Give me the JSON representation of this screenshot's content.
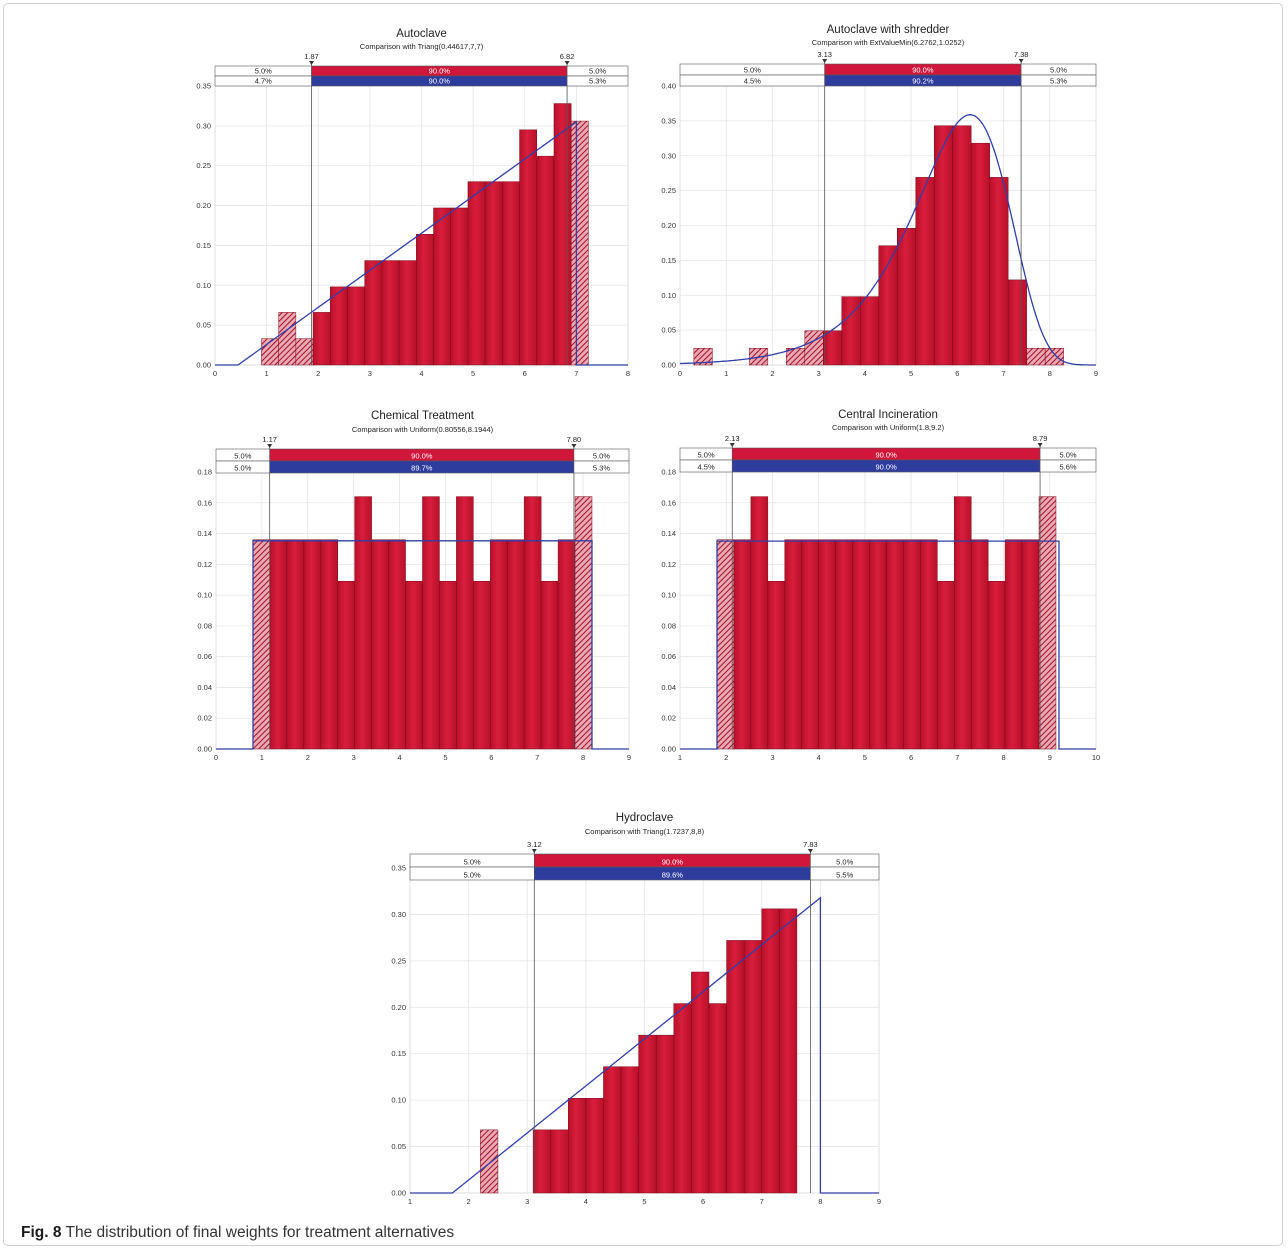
{
  "caption": {
    "label": "Fig. 8",
    "text": "The distribution of final weights for treatment alternatives"
  },
  "colors": {
    "bar": "#b8102a",
    "bar_light": "#d81e3c",
    "fit_line": "#2f3ea8",
    "upper_band": "#d0163a",
    "lower_band": "#2e3c9e"
  },
  "chart_data": [
    {
      "type": "bar",
      "title": "Autoclave",
      "subtitle": "Comparison with Triang(0.44617,7,7)",
      "xlim": [
        0,
        8
      ],
      "ylim": [
        0,
        0.35
      ],
      "xticks": [
        0,
        1,
        2,
        3,
        4,
        5,
        6,
        7,
        8
      ],
      "yticks": [
        "0.00",
        "0.05",
        "0.10",
        "0.15",
        "0.20",
        "0.25",
        "0.30",
        "0.35"
      ],
      "grid": true,
      "markers": {
        "left": "1.87",
        "right": "6.82"
      },
      "band_top": {
        "left": "5.0%",
        "mid": "90.0%",
        "right": "5.0%"
      },
      "band_bottom": {
        "left": "4.7%",
        "mid": "90.0%",
        "right": "5.3%"
      },
      "bin_start": 0.9,
      "bin_width": 0.3333,
      "values": [
        0.033,
        0.066,
        0.033,
        0.066,
        0.098,
        0.098,
        0.131,
        0.131,
        0.131,
        0.164,
        0.197,
        0.197,
        0.23,
        0.23,
        0.23,
        0.295,
        0.262,
        0.328,
        0.306
      ],
      "fit": {
        "kind": "triang",
        "a": 0.44617,
        "c": 7,
        "b": 7,
        "peak": 0.305
      }
    },
    {
      "type": "bar",
      "title": "Autoclave with shredder",
      "subtitle": "Comparison with ExtValueMin(6.2762,1.0252)",
      "xlim": [
        0,
        9
      ],
      "ylim": [
        0,
        0.4
      ],
      "xticks": [
        0,
        1,
        2,
        3,
        4,
        5,
        6,
        7,
        8,
        9
      ],
      "yticks": [
        "0.00",
        "0.05",
        "0.10",
        "0.15",
        "0.20",
        "0.25",
        "0.30",
        "0.35",
        "0.40"
      ],
      "grid": true,
      "markers": {
        "left": "3.13",
        "right": "7.38"
      },
      "band_top": {
        "left": "5.0%",
        "mid": "90.0%",
        "right": "5.0%"
      },
      "band_bottom": {
        "left": "4.5%",
        "mid": "90.2%",
        "right": "5.3%"
      },
      "bin_start": 0.3,
      "bin_width": 0.4,
      "values": [
        0.024,
        0,
        0,
        0.024,
        0,
        0.024,
        0.049,
        0.049,
        0.098,
        0.098,
        0.171,
        0.196,
        0.269,
        0.343,
        0.343,
        0.318,
        0.269,
        0.122,
        0.024,
        0.024
      ],
      "fit": {
        "kind": "extvaluemin",
        "a": 6.2762,
        "b": 1.0252
      }
    },
    {
      "type": "bar",
      "title": "Chemical Treatment",
      "subtitle": "Comparison with Uniform(0.80556,8.1944)",
      "xlim": [
        0,
        9
      ],
      "ylim": [
        0,
        0.18
      ],
      "xticks": [
        0,
        1,
        2,
        3,
        4,
        5,
        6,
        7,
        8,
        9
      ],
      "yticks": [
        "0.00",
        "0.02",
        "0.04",
        "0.06",
        "0.08",
        "0.10",
        "0.12",
        "0.14",
        "0.16",
        "0.18"
      ],
      "grid": true,
      "markers": {
        "left": "1.17",
        "right": "7.80"
      },
      "band_top": {
        "left": "5.0%",
        "mid": "90.0%",
        "right": "5.0%"
      },
      "band_bottom": {
        "left": "5.0%",
        "mid": "89.7%",
        "right": "5.3%"
      },
      "bin_start": 0.8056,
      "bin_width": 0.3694,
      "values": [
        0.136,
        0.136,
        0.136,
        0.136,
        0.136,
        0.109,
        0.164,
        0.136,
        0.136,
        0.109,
        0.164,
        0.109,
        0.164,
        0.109,
        0.136,
        0.136,
        0.164,
        0.109,
        0.136,
        0.164
      ],
      "fit": {
        "kind": "uniform",
        "a": 0.80556,
        "b": 8.1944,
        "h": 0.1353
      }
    },
    {
      "type": "bar",
      "title": "Central Incineration",
      "subtitle": "Comparison with Uniform(1.8,9.2)",
      "xlim": [
        1,
        10
      ],
      "ylim": [
        0,
        0.18
      ],
      "xticks": [
        1,
        2,
        3,
        4,
        5,
        6,
        7,
        8,
        9,
        10
      ],
      "yticks": [
        "0.00",
        "0.02",
        "0.04",
        "0.06",
        "0.08",
        "0.10",
        "0.12",
        "0.14",
        "0.16",
        "0.18"
      ],
      "grid": true,
      "markers": {
        "left": "2.13",
        "right": "8.79"
      },
      "band_top": {
        "left": "5.0%",
        "mid": "90.0%",
        "right": "5.0%"
      },
      "band_bottom": {
        "left": "4.5%",
        "mid": "90.0%",
        "right": "5.6%"
      },
      "bin_start": 1.8,
      "bin_width": 0.3667,
      "values": [
        0.136,
        0.136,
        0.164,
        0.109,
        0.136,
        0.136,
        0.136,
        0.136,
        0.136,
        0.136,
        0.136,
        0.136,
        0.136,
        0.109,
        0.164,
        0.136,
        0.109,
        0.136,
        0.136,
        0.164
      ],
      "fit": {
        "kind": "uniform",
        "a": 1.8,
        "b": 9.2,
        "h": 0.1351
      }
    },
    {
      "type": "bar",
      "title": "Hydroclave",
      "subtitle": "Comparison with Triang(1.7237,8,8)",
      "xlim": [
        1,
        9
      ],
      "ylim": [
        0,
        0.35
      ],
      "xticks": [
        1,
        2,
        3,
        4,
        5,
        6,
        7,
        8,
        9
      ],
      "yticks": [
        "0.00",
        "0.05",
        "0.10",
        "0.15",
        "0.20",
        "0.25",
        "0.30",
        "0.35"
      ],
      "grid": true,
      "markers": {
        "left": "3.12",
        "right": "7.83"
      },
      "band_top": {
        "left": "5.0%",
        "mid": "90.0%",
        "right": "5.0%"
      },
      "band_bottom": {
        "left": "5.0%",
        "mid": "89.6%",
        "right": "5.5%"
      },
      "bin_start": 1.9,
      "bin_width": 0.3,
      "values": [
        0,
        0.068,
        0,
        0,
        0.068,
        0.068,
        0.102,
        0.102,
        0.136,
        0.136,
        0.17,
        0.17,
        0.204,
        0.238,
        0.204,
        0.272,
        0.272,
        0.306,
        0.306,
        0
      ],
      "fit": {
        "kind": "triang",
        "a": 1.7237,
        "c": 8,
        "b": 8,
        "peak": 0.318
      }
    }
  ]
}
